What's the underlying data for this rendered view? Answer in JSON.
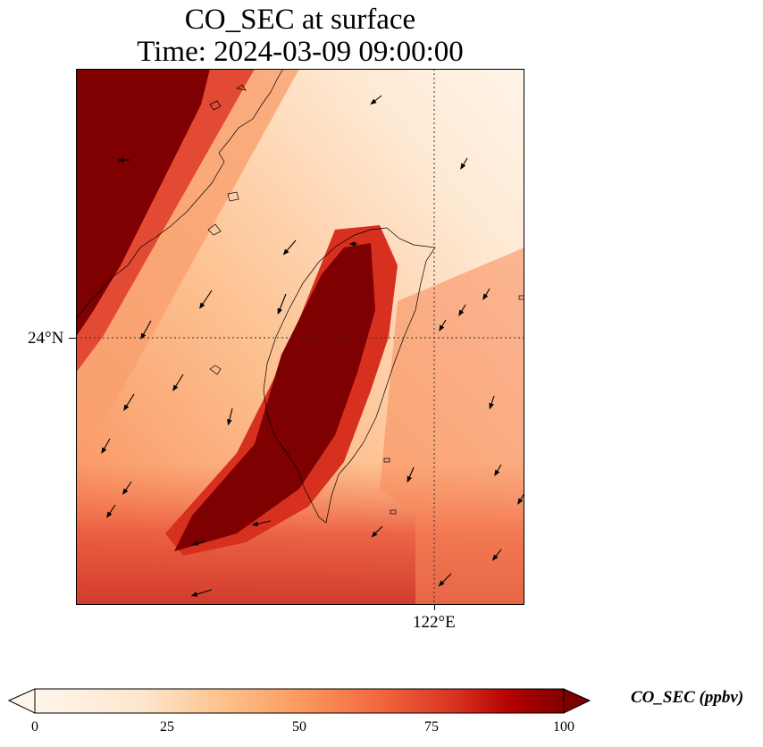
{
  "title": {
    "line1": "CO_SEC at surface",
    "line2": "Time: 2024-03-09 09:00:00"
  },
  "map": {
    "lat_label": "24°N",
    "lon_label": "122°E",
    "gridlines": "dotted"
  },
  "colorbar": {
    "label": "CO_SEC (ppbv)",
    "ticks": [
      "0",
      "25",
      "50",
      "75",
      "100"
    ],
    "range": [
      0,
      100
    ],
    "colormap": [
      "#fff5eb",
      "#fdd4a8",
      "#fca56c",
      "#ef6a3f",
      "#c81d1d",
      "#7f0000"
    ],
    "extend": "both"
  },
  "chart_data": {
    "type": "heatmap",
    "variable": "CO_SEC",
    "units": "ppbv",
    "description_level": "surface",
    "vmin": 0,
    "vmax": 100,
    "features": [
      "coastline",
      "wind-vectors"
    ]
  }
}
